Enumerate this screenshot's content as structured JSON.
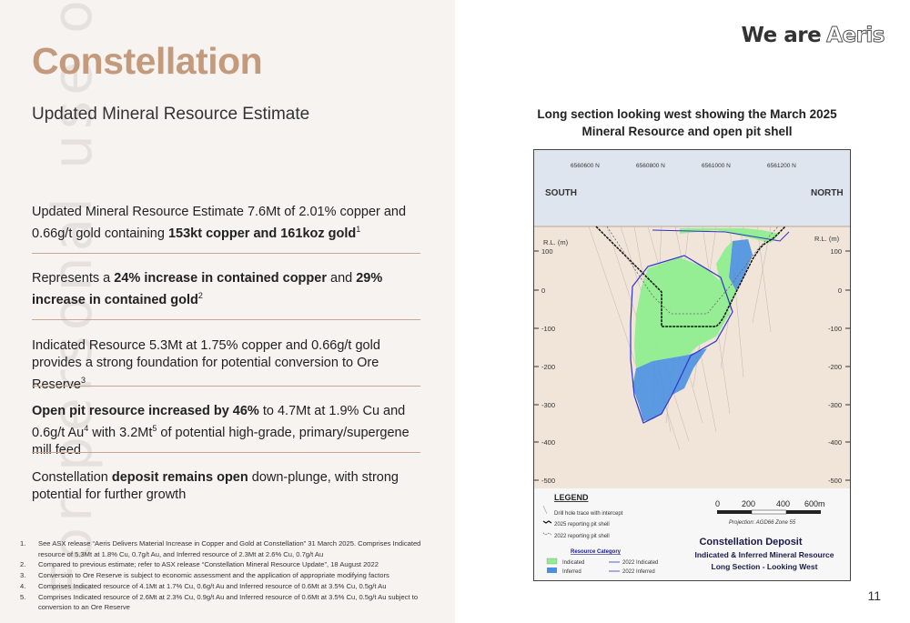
{
  "slide": {
    "title": "Constellation",
    "subtitle": "Updated Mineral Resource Estimate",
    "brand_prefix": "We are",
    "brand_name": "Aeris",
    "page_number": "11",
    "watermark": "For personal use only"
  },
  "points": [
    {
      "pre": "Updated Mineral Resource Estimate 7.6Mt of 2.01% copper and 0.66g/t gold containing ",
      "bold": "153kt copper and 161koz gold",
      "post": "",
      "sup": "1"
    },
    {
      "pre": "Represents a ",
      "bold": "24% increase in contained copper",
      "mid": " and ",
      "bold2": "29% increase in contained gold",
      "sup": "2"
    },
    {
      "pre": "Indicated Resource 5.3Mt at 1.75% copper and 0.66g/t gold provides a strong foundation for potential conversion to Ore Reserve",
      "sup": "3"
    },
    {
      "bold": "Open pit resource increased by 46%",
      "post": " to 4.7Mt at 1.9% Cu and 0.6g/t Au",
      "sup": "4",
      "post2": " with 3.2Mt",
      "sup2": "5",
      "post3": " of potential high-grade, primary/supergene mill feed"
    },
    {
      "pre": "Constellation ",
      "bold": "deposit remains open",
      "post": " down-plunge, with strong potential for further growth"
    }
  ],
  "footnotes": [
    {
      "n": "1.",
      "text": "See ASX release “Aeris Delivers Material Increase in Copper and Gold at Constellation” 31 March 2025. Comprises Indicated resource of 5.3Mt at 1.8% Cu, 0.7g/t Au, and Inferred resource of 2.3Mt at 2.6% Cu, 0.7g/t Au"
    },
    {
      "n": "2.",
      "text": "Compared to previous estimate; refer to ASX release “Constellation Mineral Resource Update”, 18 August 2022"
    },
    {
      "n": "3.",
      "text": "Conversion to Ore Reserve is subject to economic assessment and the application of appropriate modifying factors"
    },
    {
      "n": "4.",
      "text": "Comprises Indicated resource of 4.1Mt at 1.7% Cu, 0.6g/t Au and Inferred resource of 0.6Mt at 3.5% Cu, 0.5g/t Au"
    },
    {
      "n": "5.",
      "text": "Comprises Indicated resource of 2.6Mt at 2.3% Cu, 0.9g/t Au and Inferred resource of 0.6Mt at 3.5% Cu, 0.5g/t Au subject to conversion to an Ore Reserve"
    }
  ],
  "figure": {
    "title_line1": "Long section looking west showing the March 2025",
    "title_line2": "Mineral Resource and open pit shell",
    "northings": [
      "6560600 N",
      "6560800 N",
      "6561000 N",
      "6561200 N"
    ],
    "south_label": "SOUTH",
    "north_label": "NORTH",
    "rl_label": "R.L. (m)",
    "rl_ticks": [
      "100",
      "0",
      "-100",
      "-200",
      "-300",
      "-400",
      "-500"
    ],
    "legend_title": "LEGEND",
    "legend_items": [
      "Drill hole trace with intercept",
      "2025 reporting pit shell",
      "2022 reporting pit shell"
    ],
    "resource_category_title": "Resource Category",
    "resource_items": [
      "Indicated",
      "Inferred"
    ],
    "resource_2022_items": [
      "2022 Indicated",
      "2022 Inferred"
    ],
    "scale_labels": [
      "0",
      "200",
      "400",
      "600m"
    ],
    "projection": "Projection: AGD66 Zone 55",
    "deposit_title": "Constellation Deposit",
    "deposit_sub1": "Indicated & Inferred Mineral Resource",
    "deposit_sub2": "Long Section - Looking West",
    "colors": {
      "indicated": "#90ee90",
      "inferred": "#4a90e2",
      "surface": "#f1e4d8",
      "sky": "#dfe5ee",
      "pit_2025": "#111111",
      "outline_2022": "#3333cc"
    }
  }
}
